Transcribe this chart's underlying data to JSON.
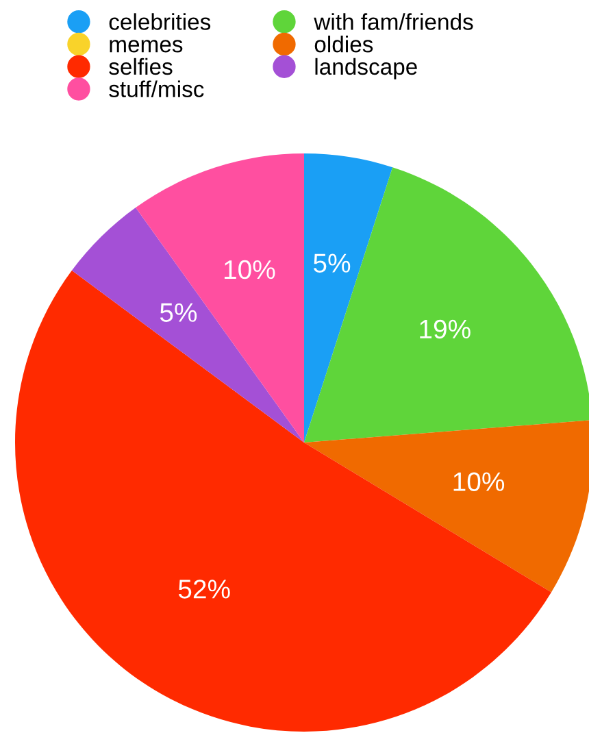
{
  "chart_data": {
    "type": "pie",
    "categories": [
      "celebrities",
      "with fam/friends",
      "memes",
      "oldies",
      "selfies",
      "landscape",
      "stuff/misc"
    ],
    "values": [
      5,
      19,
      0,
      10,
      52,
      5,
      10
    ],
    "colors": [
      "#1a9ff5",
      "#5fd53a",
      "#f9d32a",
      "#f06a00",
      "#ff2a00",
      "#a450d6",
      "#ff4fa0"
    ],
    "value_labels": [
      "5%",
      "19%",
      null,
      "10%",
      "52%",
      "5%",
      "10%"
    ],
    "legend": "top"
  }
}
